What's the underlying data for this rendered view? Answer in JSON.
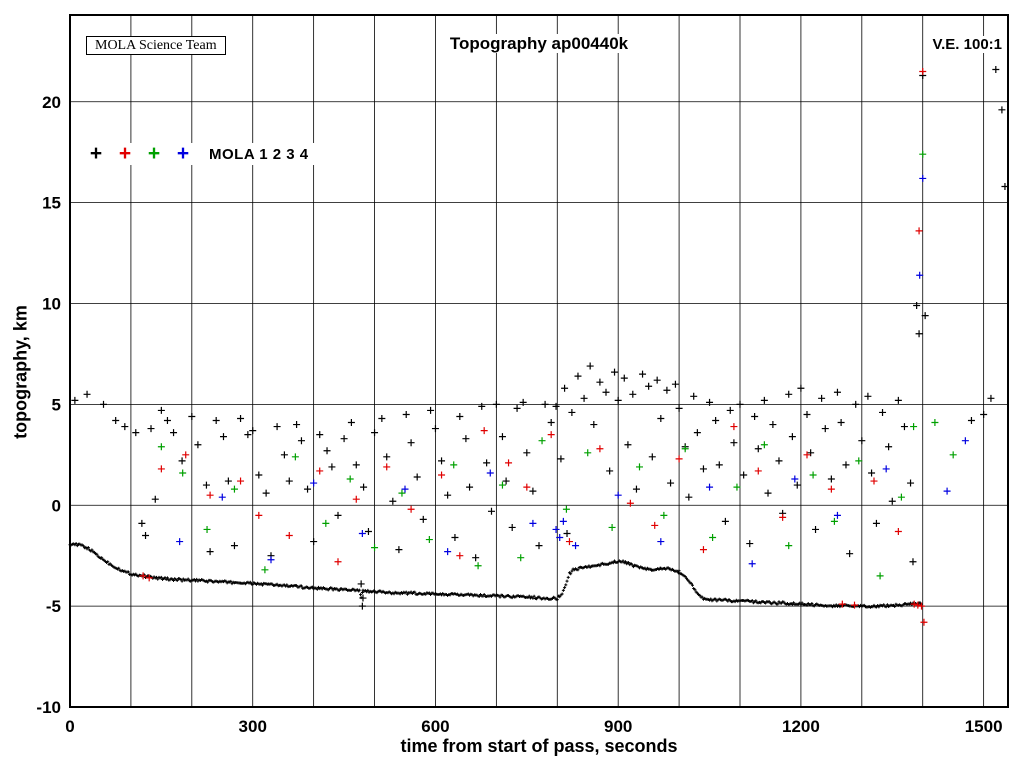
{
  "header": {
    "box_label": "MOLA Science Team",
    "title": "Topography ap00440k",
    "ve_label": "V.E. 100:1"
  },
  "legend": {
    "label": "MOLA 1 2 3 4",
    "marker_colors": [
      "#000000",
      "#e00000",
      "#00a000",
      "#0000e0"
    ]
  },
  "chart_data": {
    "type": "scatter",
    "title": "Topography ap00440k",
    "xlabel": "time from start of pass, seconds",
    "ylabel": "topography, km",
    "xlim": [
      0,
      1540
    ],
    "ylim": [
      -10,
      24.3
    ],
    "x_major_ticks": [
      0,
      300,
      600,
      900,
      1200,
      1500
    ],
    "x_gridline_step": 100,
    "y_major_ticks": [
      -10,
      -5,
      0,
      5,
      10,
      15,
      20
    ],
    "grid": true,
    "marker": "+",
    "ground_track": {
      "name": "surface profile",
      "color": "#000000",
      "sample_step": 2,
      "jitter_km": 0.12,
      "points": [
        [
          0,
          -1.9
        ],
        [
          10,
          -1.95
        ],
        [
          20,
          -2.0
        ],
        [
          30,
          -2.15
        ],
        [
          40,
          -2.35
        ],
        [
          50,
          -2.6
        ],
        [
          60,
          -2.8
        ],
        [
          70,
          -3.0
        ],
        [
          80,
          -3.15
        ],
        [
          90,
          -3.3
        ],
        [
          100,
          -3.4
        ],
        [
          120,
          -3.5
        ],
        [
          140,
          -3.6
        ],
        [
          160,
          -3.65
        ],
        [
          180,
          -3.7
        ],
        [
          200,
          -3.72
        ],
        [
          250,
          -3.8
        ],
        [
          300,
          -3.88
        ],
        [
          350,
          -3.98
        ],
        [
          400,
          -4.1
        ],
        [
          430,
          -4.15
        ],
        [
          460,
          -4.2
        ],
        [
          475,
          -4.25
        ],
        [
          478,
          -4.55
        ],
        [
          481,
          -4.25
        ],
        [
          500,
          -4.3
        ],
        [
          550,
          -4.35
        ],
        [
          600,
          -4.4
        ],
        [
          650,
          -4.45
        ],
        [
          700,
          -4.5
        ],
        [
          750,
          -4.55
        ],
        [
          780,
          -4.6
        ],
        [
          800,
          -4.62
        ],
        [
          808,
          -4.4
        ],
        [
          814,
          -3.9
        ],
        [
          820,
          -3.4
        ],
        [
          826,
          -3.2
        ],
        [
          840,
          -3.1
        ],
        [
          860,
          -3.0
        ],
        [
          880,
          -2.9
        ],
        [
          900,
          -2.78
        ],
        [
          915,
          -2.85
        ],
        [
          925,
          -3.0
        ],
        [
          940,
          -3.12
        ],
        [
          955,
          -3.2
        ],
        [
          970,
          -3.12
        ],
        [
          985,
          -3.15
        ],
        [
          1000,
          -3.3
        ],
        [
          1010,
          -3.5
        ],
        [
          1020,
          -3.9
        ],
        [
          1030,
          -4.4
        ],
        [
          1040,
          -4.65
        ],
        [
          1060,
          -4.7
        ],
        [
          1080,
          -4.72
        ],
        [
          1100,
          -4.75
        ],
        [
          1150,
          -4.82
        ],
        [
          1200,
          -4.9
        ],
        [
          1250,
          -4.97
        ],
        [
          1300,
          -5.0
        ],
        [
          1330,
          -5.0
        ],
        [
          1360,
          -4.95
        ],
        [
          1380,
          -4.9
        ],
        [
          1400,
          -4.87
        ]
      ]
    },
    "series": [
      {
        "name": "MOLA 1",
        "color": "#000000",
        "points": [
          [
            8,
            5.2
          ],
          [
            28,
            5.5
          ],
          [
            55,
            5.0
          ],
          [
            75,
            4.2
          ],
          [
            90,
            3.9
          ],
          [
            108,
            3.6
          ],
          [
            118,
            -0.9
          ],
          [
            124,
            -1.5
          ],
          [
            133,
            3.8
          ],
          [
            140,
            0.3
          ],
          [
            150,
            4.7
          ],
          [
            160,
            4.2
          ],
          [
            170,
            3.6
          ],
          [
            184,
            2.2
          ],
          [
            200,
            4.4
          ],
          [
            210,
            3.0
          ],
          [
            224,
            1.0
          ],
          [
            230,
            -2.3
          ],
          [
            240,
            4.2
          ],
          [
            252,
            3.4
          ],
          [
            260,
            1.2
          ],
          [
            270,
            -2.0
          ],
          [
            280,
            4.3
          ],
          [
            292,
            3.5
          ],
          [
            300,
            3.7
          ],
          [
            310,
            1.5
          ],
          [
            322,
            0.6
          ],
          [
            330,
            -2.5
          ],
          [
            340,
            3.9
          ],
          [
            352,
            2.5
          ],
          [
            360,
            1.2
          ],
          [
            372,
            4.0
          ],
          [
            380,
            3.2
          ],
          [
            390,
            0.8
          ],
          [
            400,
            -1.8
          ],
          [
            410,
            3.5
          ],
          [
            422,
            2.7
          ],
          [
            430,
            1.9
          ],
          [
            440,
            -0.5
          ],
          [
            450,
            3.3
          ],
          [
            462,
            4.1
          ],
          [
            470,
            2.0
          ],
          [
            478,
            -3.9
          ],
          [
            480,
            -5.0
          ],
          [
            481,
            -4.6
          ],
          [
            482,
            0.9
          ],
          [
            490,
            -1.3
          ],
          [
            500,
            3.6
          ],
          [
            512,
            4.3
          ],
          [
            520,
            2.4
          ],
          [
            530,
            0.2
          ],
          [
            540,
            -2.2
          ],
          [
            552,
            4.5
          ],
          [
            560,
            3.1
          ],
          [
            570,
            1.4
          ],
          [
            580,
            -0.7
          ],
          [
            592,
            4.7
          ],
          [
            600,
            3.8
          ],
          [
            610,
            2.2
          ],
          [
            620,
            0.5
          ],
          [
            632,
            -1.6
          ],
          [
            640,
            4.4
          ],
          [
            650,
            3.3
          ],
          [
            656,
            0.9
          ],
          [
            666,
            -2.6
          ],
          [
            676,
            4.9
          ],
          [
            684,
            2.1
          ],
          [
            692,
            -0.3
          ],
          [
            700,
            5.0
          ],
          [
            710,
            3.4
          ],
          [
            716,
            1.2
          ],
          [
            726,
            -1.1
          ],
          [
            734,
            4.8
          ],
          [
            744,
            5.1
          ],
          [
            750,
            2.6
          ],
          [
            760,
            0.7
          ],
          [
            770,
            -2.0
          ],
          [
            780,
            5.0
          ],
          [
            790,
            4.1
          ],
          [
            798,
            4.9
          ],
          [
            806,
            2.3
          ],
          [
            812,
            5.8
          ],
          [
            816,
            -1.4
          ],
          [
            824,
            4.6
          ],
          [
            834,
            6.4
          ],
          [
            844,
            5.3
          ],
          [
            854,
            6.9
          ],
          [
            860,
            4.0
          ],
          [
            870,
            6.1
          ],
          [
            880,
            5.6
          ],
          [
            886,
            1.7
          ],
          [
            894,
            6.6
          ],
          [
            900,
            5.2
          ],
          [
            910,
            6.3
          ],
          [
            916,
            3.0
          ],
          [
            924,
            5.5
          ],
          [
            930,
            0.8
          ],
          [
            940,
            6.5
          ],
          [
            950,
            5.9
          ],
          [
            956,
            2.4
          ],
          [
            964,
            6.2
          ],
          [
            970,
            4.3
          ],
          [
            980,
            5.7
          ],
          [
            986,
            1.1
          ],
          [
            994,
            6.0
          ],
          [
            1000,
            4.8
          ],
          [
            1010,
            2.9
          ],
          [
            1016,
            0.4
          ],
          [
            1024,
            5.4
          ],
          [
            1030,
            3.6
          ],
          [
            1040,
            1.8
          ],
          [
            1050,
            5.1
          ],
          [
            1060,
            4.2
          ],
          [
            1066,
            2.0
          ],
          [
            1076,
            -0.8
          ],
          [
            1084,
            4.7
          ],
          [
            1090,
            3.1
          ],
          [
            1100,
            5.0
          ],
          [
            1106,
            1.5
          ],
          [
            1116,
            -1.9
          ],
          [
            1124,
            4.4
          ],
          [
            1130,
            2.8
          ],
          [
            1140,
            5.2
          ],
          [
            1146,
            0.6
          ],
          [
            1154,
            4.0
          ],
          [
            1164,
            2.2
          ],
          [
            1170,
            -0.4
          ],
          [
            1180,
            5.5
          ],
          [
            1186,
            3.4
          ],
          [
            1194,
            1.0
          ],
          [
            1200,
            5.8
          ],
          [
            1210,
            4.5
          ],
          [
            1216,
            2.6
          ],
          [
            1224,
            -1.2
          ],
          [
            1234,
            5.3
          ],
          [
            1240,
            3.8
          ],
          [
            1250,
            1.3
          ],
          [
            1260,
            5.6
          ],
          [
            1266,
            4.1
          ],
          [
            1274,
            2.0
          ],
          [
            1280,
            -2.4
          ],
          [
            1290,
            5.0
          ],
          [
            1300,
            3.2
          ],
          [
            1310,
            5.4
          ],
          [
            1316,
            1.6
          ],
          [
            1324,
            -0.9
          ],
          [
            1334,
            4.6
          ],
          [
            1344,
            2.9
          ],
          [
            1350,
            0.2
          ],
          [
            1360,
            5.2
          ],
          [
            1370,
            3.9
          ],
          [
            1380,
            1.1
          ],
          [
            1384,
            -2.8
          ],
          [
            1390,
            9.9
          ],
          [
            1394,
            8.5
          ],
          [
            1400,
            21.3
          ],
          [
            1404,
            9.4
          ],
          [
            1480,
            4.2
          ],
          [
            1500,
            4.5
          ],
          [
            1512,
            5.3
          ],
          [
            1520,
            21.6
          ],
          [
            1530,
            19.6
          ],
          [
            1535,
            15.8
          ]
        ]
      },
      {
        "name": "MOLA 2",
        "color": "#e00000",
        "points": [
          [
            120,
            -3.5
          ],
          [
            130,
            -3.6
          ],
          [
            150,
            1.8
          ],
          [
            190,
            2.5
          ],
          [
            230,
            0.5
          ],
          [
            280,
            1.2
          ],
          [
            310,
            -0.5
          ],
          [
            360,
            -1.5
          ],
          [
            410,
            1.7
          ],
          [
            440,
            -2.8
          ],
          [
            470,
            0.3
          ],
          [
            520,
            1.9
          ],
          [
            560,
            -0.2
          ],
          [
            610,
            1.5
          ],
          [
            640,
            -2.5
          ],
          [
            680,
            3.7
          ],
          [
            720,
            2.1
          ],
          [
            750,
            0.9
          ],
          [
            790,
            3.5
          ],
          [
            820,
            -1.8
          ],
          [
            870,
            2.8
          ],
          [
            920,
            0.1
          ],
          [
            960,
            -1.0
          ],
          [
            1000,
            2.3
          ],
          [
            1040,
            -2.2
          ],
          [
            1090,
            3.9
          ],
          [
            1130,
            1.7
          ],
          [
            1170,
            -0.6
          ],
          [
            1210,
            2.5
          ],
          [
            1250,
            0.8
          ],
          [
            1268,
            -4.9
          ],
          [
            1288,
            -4.95
          ],
          [
            1320,
            1.2
          ],
          [
            1360,
            -1.3
          ],
          [
            1386,
            -4.9
          ],
          [
            1392,
            -4.95
          ],
          [
            1398,
            -5.0
          ],
          [
            1402,
            -5.8
          ],
          [
            1394,
            13.6
          ],
          [
            1400,
            21.5
          ]
        ]
      },
      {
        "name": "MOLA 3",
        "color": "#00a000",
        "points": [
          [
            150,
            2.9
          ],
          [
            185,
            1.6
          ],
          [
            225,
            -1.2
          ],
          [
            270,
            0.8
          ],
          [
            320,
            -3.2
          ],
          [
            370,
            2.4
          ],
          [
            420,
            -0.9
          ],
          [
            460,
            1.3
          ],
          [
            500,
            -2.1
          ],
          [
            545,
            0.6
          ],
          [
            590,
            -1.7
          ],
          [
            630,
            2.0
          ],
          [
            670,
            -3.0
          ],
          [
            710,
            1.0
          ],
          [
            740,
            -2.6
          ],
          [
            775,
            3.2
          ],
          [
            815,
            -0.2
          ],
          [
            850,
            2.6
          ],
          [
            890,
            -1.1
          ],
          [
            935,
            1.9
          ],
          [
            975,
            -0.5
          ],
          [
            1010,
            2.8
          ],
          [
            1055,
            -1.6
          ],
          [
            1095,
            0.9
          ],
          [
            1140,
            3.0
          ],
          [
            1180,
            -2.0
          ],
          [
            1220,
            1.5
          ],
          [
            1255,
            -0.8
          ],
          [
            1295,
            2.2
          ],
          [
            1330,
            -3.5
          ],
          [
            1365,
            0.4
          ],
          [
            1385,
            3.9
          ],
          [
            1400,
            17.4
          ],
          [
            1420,
            4.1
          ],
          [
            1450,
            2.5
          ]
        ]
      },
      {
        "name": "MOLA 4",
        "color": "#0000e0",
        "points": [
          [
            180,
            -1.8
          ],
          [
            250,
            0.4
          ],
          [
            330,
            -2.7
          ],
          [
            400,
            1.1
          ],
          [
            480,
            -1.4
          ],
          [
            550,
            0.8
          ],
          [
            620,
            -2.3
          ],
          [
            690,
            1.6
          ],
          [
            760,
            -0.9
          ],
          [
            798,
            -1.2
          ],
          [
            804,
            -1.6
          ],
          [
            810,
            -0.8
          ],
          [
            830,
            -2.0
          ],
          [
            900,
            0.5
          ],
          [
            970,
            -1.8
          ],
          [
            1050,
            0.9
          ],
          [
            1120,
            -2.9
          ],
          [
            1190,
            1.3
          ],
          [
            1260,
            -0.5
          ],
          [
            1340,
            1.8
          ],
          [
            1395,
            11.4
          ],
          [
            1400,
            16.2
          ],
          [
            1440,
            0.7
          ],
          [
            1470,
            3.2
          ]
        ]
      }
    ]
  }
}
